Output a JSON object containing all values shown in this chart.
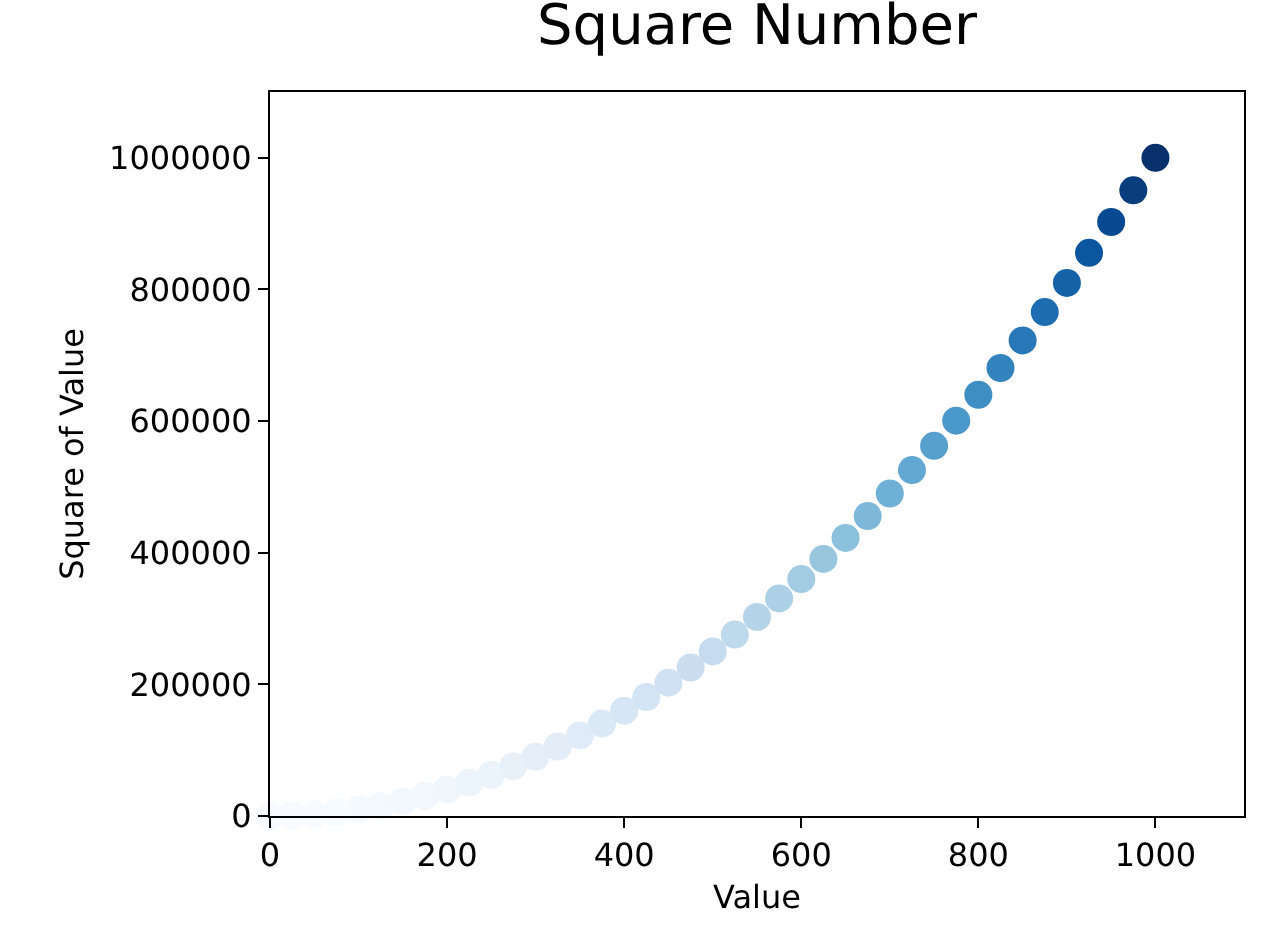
{
  "chart_data": {
    "type": "scatter",
    "title": "Square Number",
    "xlabel": "Value",
    "ylabel": "Square of Value",
    "x": [
      0,
      25,
      50,
      75,
      100,
      125,
      150,
      175,
      200,
      225,
      250,
      275,
      300,
      325,
      350,
      375,
      400,
      425,
      450,
      475,
      500,
      525,
      550,
      575,
      600,
      625,
      650,
      675,
      700,
      725,
      750,
      775,
      800,
      825,
      850,
      875,
      900,
      925,
      950,
      975,
      1000
    ],
    "values": [
      0,
      625,
      2500,
      5625,
      10000,
      15625,
      22500,
      30625,
      40000,
      50625,
      62500,
      75625,
      90000,
      105625,
      122500,
      140625,
      160000,
      180625,
      202500,
      225625,
      250000,
      275625,
      302500,
      330625,
      360000,
      390625,
      422500,
      455625,
      490000,
      525625,
      562500,
      600625,
      640000,
      680625,
      722500,
      765625,
      810000,
      855625,
      902500,
      950625,
      1000000
    ],
    "colors": [
      "#f7fbff",
      "#f7fbff",
      "#f7fbff",
      "#f6fbff",
      "#f5faff",
      "#f4f9fe",
      "#f2f8fe",
      "#f1f7fd",
      "#eff6fc",
      "#edf5fc",
      "#ebf3fb",
      "#e8f1fa",
      "#e5eff9",
      "#e2edf8",
      "#dfebf7",
      "#dbe9f6",
      "#d7e6f5",
      "#d3e4f4",
      "#cfe1f2",
      "#cbdef1",
      "#c6dbef",
      "#bed8ec",
      "#b5d4e9",
      "#acd0e6",
      "#a3cce3",
      "#98c6df",
      "#8bc1dc",
      "#7db8da",
      "#6fb0d7",
      "#63a8d3",
      "#57a0ce",
      "#4a97c9",
      "#3e8ec4",
      "#3383be",
      "#2878b8",
      "#1e6db2",
      "#1562a9",
      "#0c56a0",
      "#084a91",
      "#083d7e",
      "#08306b"
    ],
    "marker": "circle",
    "xlim": [
      0,
      1100
    ],
    "xticks": [
      0,
      200,
      400,
      600,
      800,
      1000
    ],
    "ylim": [
      0,
      1100000
    ],
    "yticks": [
      0,
      200000,
      400000,
      600000,
      800000,
      1000000
    ]
  }
}
